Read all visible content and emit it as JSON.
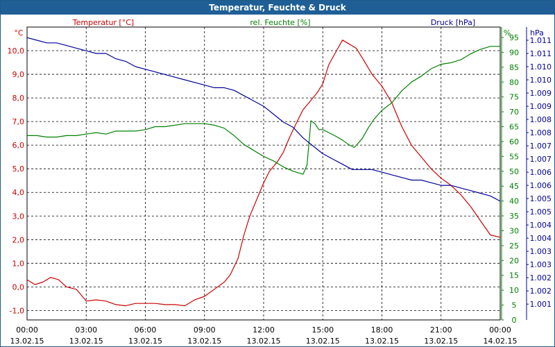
{
  "chart_data": {
    "type": "line",
    "title": "Temperatur, Feuchte & Druck",
    "x_ticks": [
      {
        "time": "00:00",
        "date": "13.02.15"
      },
      {
        "time": "03:00",
        "date": "13.02.15"
      },
      {
        "time": "06:00",
        "date": "13.02.15"
      },
      {
        "time": "09:00",
        "date": "13.02.15"
      },
      {
        "time": "12:00",
        "date": "13.02.15"
      },
      {
        "time": "15:00",
        "date": "13.02.15"
      },
      {
        "time": "18:00",
        "date": "13.02.15"
      },
      {
        "time": "21:00",
        "date": "13.02.15"
      },
      {
        "time": "00:00",
        "date": "14.02.15"
      }
    ],
    "xlim": [
      0,
      24
    ],
    "axes": {
      "temperature": {
        "label": "Temperatur [°C]",
        "unit_label": "°C",
        "color": "#cc0000",
        "ylim": [
          -1.4,
          11.0
        ],
        "ticks": [
          "10,0",
          "9,0",
          "8,0",
          "7,0",
          "6,0",
          "5,0",
          "4,0",
          "3,0",
          "2,0",
          "1,0",
          "0,0",
          "-1,0"
        ],
        "tick_values": [
          10,
          9,
          8,
          7,
          6,
          5,
          4,
          3,
          2,
          1,
          0,
          -1
        ]
      },
      "humidity": {
        "label": "rel. Feuchte [%]",
        "unit_label": "%",
        "color": "#008000",
        "ylim": [
          0,
          98.5
        ],
        "ticks": [
          "95",
          "90",
          "85",
          "80",
          "75",
          "70",
          "65",
          "60",
          "55",
          "50",
          "45",
          "40",
          "35",
          "30",
          "25",
          "20",
          "15",
          "10",
          "5",
          "0"
        ],
        "tick_values": [
          95,
          90,
          85,
          80,
          75,
          70,
          65,
          60,
          55,
          50,
          45,
          40,
          35,
          30,
          25,
          20,
          15,
          10,
          5,
          0
        ]
      },
      "pressure": {
        "label": "Druck [hPa]",
        "unit_label": "hPa",
        "color": "#000099",
        "ylim": [
          1.0005,
          1.0116
        ],
        "ticks": [
          "1.011",
          "1.011",
          "1.010",
          "1.010",
          "1.009",
          "1.009",
          "1.008",
          "1.008",
          "1.007",
          "1.007",
          "1.006",
          "1.006",
          "1.005",
          "1.005",
          "1.004",
          "1.004",
          "1.003",
          "1.003",
          "1.002",
          "1.002",
          "1.001"
        ],
        "tick_values": [
          1.0111,
          1.0106,
          1.0101,
          1.0096,
          1.0091,
          1.0086,
          1.0081,
          1.0076,
          1.0071,
          1.0066,
          1.0061,
          1.0056,
          1.0051,
          1.0046,
          1.0041,
          1.0036,
          1.0031,
          1.0026,
          1.0021,
          1.0016,
          1.0011
        ]
      }
    },
    "series": [
      {
        "name": "Temperatur",
        "axis": "temperature",
        "color": "#cc0000",
        "x": [
          0,
          0.4,
          0.8,
          1.2,
          1.6,
          2.0,
          2.5,
          3.0,
          3.5,
          4.0,
          4.5,
          5.0,
          5.5,
          6.0,
          6.5,
          7.0,
          7.5,
          8.0,
          8.5,
          9.0,
          9.5,
          10.0,
          10.3,
          10.7,
          11.0,
          11.3,
          11.7,
          12.0,
          12.3,
          12.7,
          13.0,
          13.3,
          13.7,
          14.0,
          14.3,
          14.7,
          15.0,
          15.3,
          15.7,
          16.0,
          16.3,
          16.7,
          17.0,
          17.5,
          18.0,
          18.5,
          19.0,
          19.5,
          20.0,
          20.5,
          21.0,
          21.5,
          22.0,
          22.5,
          23.0,
          23.5,
          24.0
        ],
        "values": [
          0.3,
          0.1,
          0.2,
          0.4,
          0.3,
          0.0,
          -0.1,
          -0.6,
          -0.55,
          -0.6,
          -0.75,
          -0.8,
          -0.7,
          -0.7,
          -0.7,
          -0.75,
          -0.75,
          -0.8,
          -0.55,
          -0.4,
          -0.1,
          0.2,
          0.5,
          1.2,
          2.2,
          3.0,
          3.8,
          4.4,
          4.9,
          5.3,
          5.7,
          6.3,
          7.0,
          7.5,
          7.8,
          8.2,
          8.6,
          9.4,
          10.0,
          10.45,
          10.3,
          10.1,
          9.7,
          9.0,
          8.5,
          7.8,
          6.8,
          6.0,
          5.5,
          5.0,
          4.6,
          4.3,
          3.9,
          3.4,
          2.8,
          2.2,
          2.1
        ]
      },
      {
        "name": "rel. Feuchte",
        "axis": "humidity",
        "color": "#008000",
        "x": [
          0,
          0.5,
          1.0,
          1.5,
          2.0,
          2.5,
          3.0,
          3.5,
          4.0,
          4.5,
          5.0,
          5.5,
          6.0,
          6.5,
          7.0,
          7.5,
          8.0,
          8.5,
          9.0,
          9.5,
          10.0,
          10.5,
          11.0,
          11.5,
          12.0,
          12.5,
          13.0,
          13.5,
          14.0,
          14.2,
          14.4,
          14.6,
          14.8,
          15.0,
          15.3,
          15.6,
          16.0,
          16.3,
          16.6,
          17.0,
          17.3,
          17.6,
          18.0,
          18.5,
          19.0,
          19.5,
          20.0,
          20.5,
          21.0,
          21.5,
          22.0,
          22.5,
          23.0,
          23.5,
          24.0
        ],
        "values": [
          62,
          62,
          61.5,
          61.5,
          62,
          62,
          62.5,
          63,
          62.5,
          63.5,
          63.5,
          63.5,
          64,
          65,
          65,
          65.5,
          66,
          66,
          66,
          65.5,
          64.5,
          62,
          59,
          57,
          55,
          53.5,
          51.5,
          50,
          49,
          52,
          67,
          66,
          64,
          64,
          63,
          62,
          60.5,
          59,
          58,
          61,
          64.5,
          67.5,
          70.5,
          73,
          77,
          80,
          82,
          84.5,
          86,
          86.5,
          87.5,
          89.5,
          91,
          92,
          92
        ]
      },
      {
        "name": "Druck",
        "axis": "pressure",
        "color": "#000099",
        "x": [
          0,
          0.5,
          1.0,
          1.5,
          2.0,
          2.5,
          3.0,
          3.5,
          4.0,
          4.5,
          5.0,
          5.5,
          6.0,
          6.5,
          7.0,
          7.5,
          8.0,
          8.5,
          9.0,
          9.5,
          10.0,
          10.5,
          11.0,
          11.5,
          12.0,
          12.5,
          13.0,
          13.5,
          14.0,
          14.5,
          15.0,
          15.5,
          16.0,
          16.5,
          17.0,
          17.5,
          18.0,
          18.5,
          19.0,
          19.5,
          20.0,
          20.5,
          21.0,
          21.5,
          22.0,
          22.5,
          23.0,
          23.5,
          24.0
        ],
        "values": [
          1.0112,
          1.0111,
          1.011,
          1.011,
          1.0109,
          1.0108,
          1.0107,
          1.0106,
          1.0106,
          1.0104,
          1.0103,
          1.0101,
          1.01,
          1.0099,
          1.0098,
          1.0097,
          1.0096,
          1.0095,
          1.0094,
          1.0093,
          1.0093,
          1.0092,
          1.009,
          1.0088,
          1.0086,
          1.0083,
          1.008,
          1.0078,
          1.0074,
          1.0071,
          1.0068,
          1.0066,
          1.0064,
          1.0062,
          1.0062,
          1.0062,
          1.0061,
          1.006,
          1.0059,
          1.0058,
          1.0058,
          1.0057,
          1.0056,
          1.0056,
          1.0055,
          1.0054,
          1.0053,
          1.0052,
          1.005
        ]
      }
    ]
  }
}
